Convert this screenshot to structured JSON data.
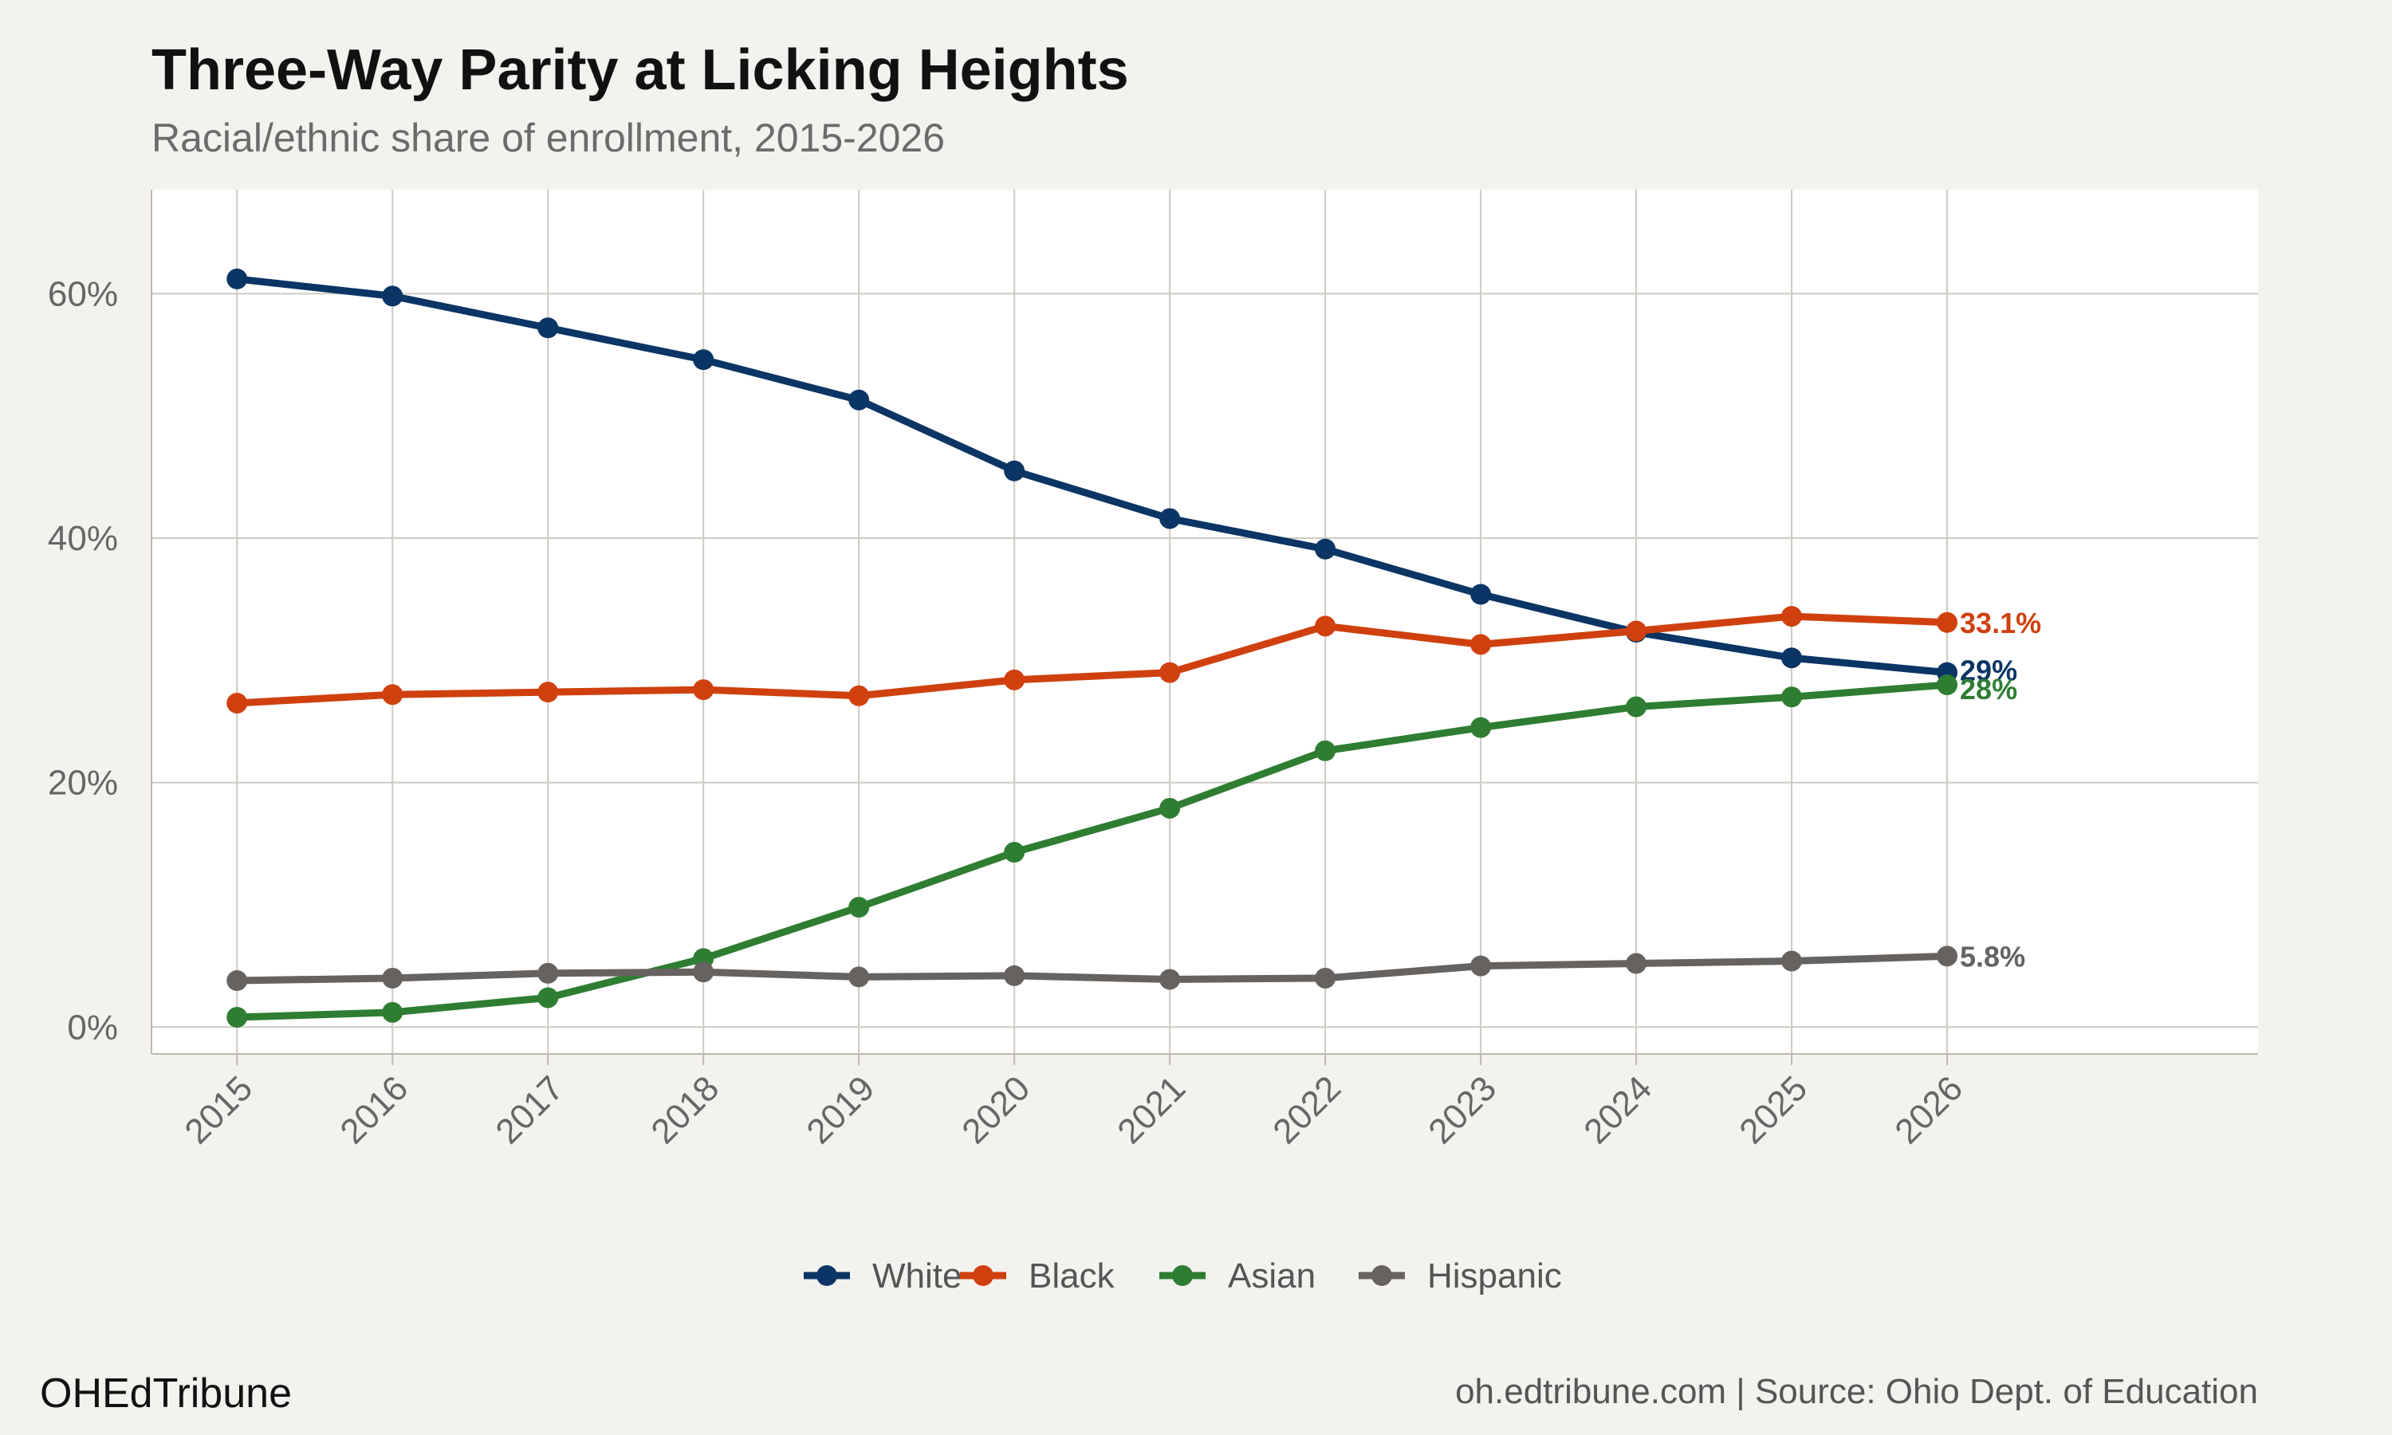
{
  "header": {
    "title": "Three-Way Parity at Licking Heights",
    "subtitle": "Racial/ethnic share of enrollment, 2015-2026"
  },
  "footer": {
    "brand": "OHEdTribune",
    "source": "oh.edtribune.com | Source: Ohio Dept. of Education"
  },
  "chart_data": {
    "type": "line",
    "title": "Three-Way Parity at Licking Heights",
    "subtitle": "Racial/ethnic share of enrollment, 2015-2026",
    "xlabel": "",
    "ylabel": "",
    "x": [
      2015,
      2016,
      2017,
      2018,
      2019,
      2020,
      2021,
      2022,
      2023,
      2024,
      2025,
      2026
    ],
    "x_tick_labels": [
      "2015",
      "2016",
      "2017",
      "2018",
      "2019",
      "2020",
      "2021",
      "2022",
      "2023",
      "2024",
      "2025",
      "2026"
    ],
    "xlim": [
      2014.45,
      2028
    ],
    "ylim": [
      -2.2,
      68.5
    ],
    "y_ticks": [
      0,
      20,
      40,
      60
    ],
    "y_tick_labels": [
      "0%",
      "20%",
      "40%",
      "60%"
    ],
    "grid": true,
    "legend_position": "bottom",
    "series": [
      {
        "name": "White",
        "color": "#0b3564",
        "values": [
          61.2,
          59.8,
          57.2,
          54.6,
          51.3,
          45.5,
          41.6,
          39.1,
          35.4,
          32.3,
          30.2,
          29.0
        ],
        "end_label": "29%",
        "end_label_dy": -3
      },
      {
        "name": "Black",
        "color": "#d0400f",
        "values": [
          26.5,
          27.2,
          27.4,
          27.6,
          27.1,
          28.4,
          29.0,
          32.8,
          31.3,
          32.4,
          33.6,
          33.1
        ],
        "end_label": "33.1%",
        "end_label_dy": 0
      },
      {
        "name": "Asian",
        "color": "#2e7d32",
        "values": [
          0.8,
          1.2,
          2.4,
          5.6,
          9.8,
          14.3,
          17.9,
          22.6,
          24.5,
          26.2,
          27.0,
          28.0
        ],
        "end_label": "28%",
        "end_label_dy": 5
      },
      {
        "name": "Hispanic",
        "color": "#666260",
        "values": [
          3.8,
          4.0,
          4.4,
          4.5,
          4.1,
          4.2,
          3.9,
          4.0,
          5.0,
          5.2,
          5.4,
          5.8
        ],
        "end_label": "5.8%",
        "end_label_dy": 0
      }
    ]
  }
}
